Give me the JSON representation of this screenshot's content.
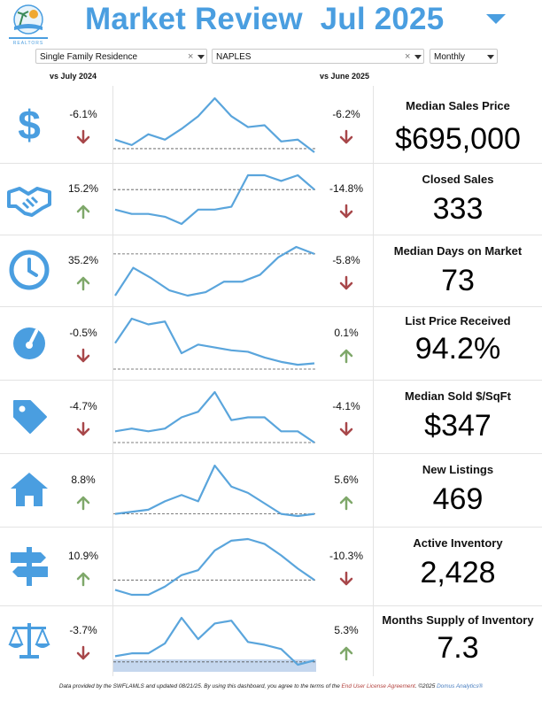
{
  "header": {
    "title": "Market Review  Jul 2025",
    "logo_text": "REALTORS",
    "title_color": "#4a9ee0"
  },
  "filters": {
    "property_type": "Single Family Residence",
    "area": "NAPLES",
    "period": "Monthly"
  },
  "columns": {
    "vs_prev_year": "vs July 2024",
    "vs_prev_month": "vs June 2025"
  },
  "colors": {
    "up": "#7fa86a",
    "down": "#a8474a",
    "accent": "#4a9ee0",
    "line": "#5aa5dc"
  },
  "metrics": [
    {
      "name": "Median Sales Price",
      "value": "$695,000",
      "yoy": "-6.1%",
      "yoy_dir": "down",
      "mom": "-6.2%",
      "mom_dir": "down",
      "icon": "dollar-icon",
      "spark": [
        0.25,
        0.1,
        0.4,
        0.25,
        0.55,
        0.9,
        1.4,
        0.9,
        0.6,
        0.65,
        0.2,
        0.25,
        -0.1
      ],
      "baseline": 0.0
    },
    {
      "name": "Closed Sales",
      "value": "333",
      "yoy": "15.2%",
      "yoy_dir": "up",
      "mom": "-14.8%",
      "mom_dir": "down",
      "icon": "handshake-icon",
      "spark": [
        0.6,
        0.45,
        0.45,
        0.35,
        0.1,
        0.6,
        0.6,
        0.7,
        1.8,
        1.8,
        1.6,
        1.8,
        1.3
      ],
      "baseline": 1.3
    },
    {
      "name": "Median Days on Market",
      "value": "73",
      "yoy": "35.2%",
      "yoy_dir": "up",
      "mom": "-5.8%",
      "mom_dir": "down",
      "icon": "clock-icon",
      "spark": [
        0.2,
        1.0,
        0.7,
        0.35,
        0.2,
        0.3,
        0.6,
        0.6,
        0.8,
        1.3,
        1.6,
        1.4
      ],
      "baseline": 1.4
    },
    {
      "name": "List Price Received",
      "value": "94.2%",
      "yoy": "-0.5%",
      "yoy_dir": "down",
      "mom": "0.1%",
      "mom_dir": "up",
      "icon": "gauge-icon",
      "spark": [
        0.9,
        1.75,
        1.55,
        1.65,
        0.55,
        0.85,
        0.75,
        0.65,
        0.6,
        0.4,
        0.25,
        0.15,
        0.2
      ],
      "baseline": 0.0
    },
    {
      "name": "Median Sold $/SqFt",
      "value": "$347",
      "yoy": "-4.7%",
      "yoy_dir": "down",
      "mom": "-4.1%",
      "mom_dir": "down",
      "icon": "tag-icon",
      "spark": [
        0.3,
        0.35,
        0.3,
        0.35,
        0.55,
        0.65,
        1.0,
        0.5,
        0.55,
        0.55,
        0.3,
        0.3,
        0.1
      ],
      "baseline": 0.1
    },
    {
      "name": "New Listings",
      "value": "469",
      "yoy": "8.8%",
      "yoy_dir": "up",
      "mom": "5.6%",
      "mom_dir": "up",
      "icon": "house-icon",
      "spark": [
        0.1,
        0.15,
        0.2,
        0.4,
        0.55,
        0.4,
        1.25,
        0.75,
        0.6,
        0.35,
        0.1,
        0.05,
        0.1
      ],
      "baseline": 0.1
    },
    {
      "name": "Active Inventory",
      "value": "2,428",
      "yoy": "10.9%",
      "yoy_dir": "up",
      "mom": "-10.3%",
      "mom_dir": "down",
      "icon": "signpost-icon",
      "spark": [
        0.25,
        0.1,
        0.1,
        0.35,
        0.7,
        0.85,
        1.45,
        1.75,
        1.8,
        1.65,
        1.3,
        0.9,
        0.55
      ],
      "baseline": 0.55
    },
    {
      "name": "Months Supply of Inventory",
      "value": "7.3",
      "yoy": "-3.7%",
      "yoy_dir": "down",
      "mom": "5.3%",
      "mom_dir": "up",
      "icon": "scale-icon",
      "spark": [
        0.2,
        0.3,
        0.3,
        0.65,
        1.55,
        0.8,
        1.35,
        1.45,
        0.7,
        0.6,
        0.45,
        -0.1,
        0.05
      ],
      "baseline": 0.0
    }
  ],
  "footer": {
    "text1": "Data provided by the SWFLAMLS and updated 08/21/25.  By using this dashboard, you agree to the terms of the ",
    "link": "End User License Agreement",
    "text2": ".  ©2025 ",
    "brand": "Domus Analytics®"
  }
}
